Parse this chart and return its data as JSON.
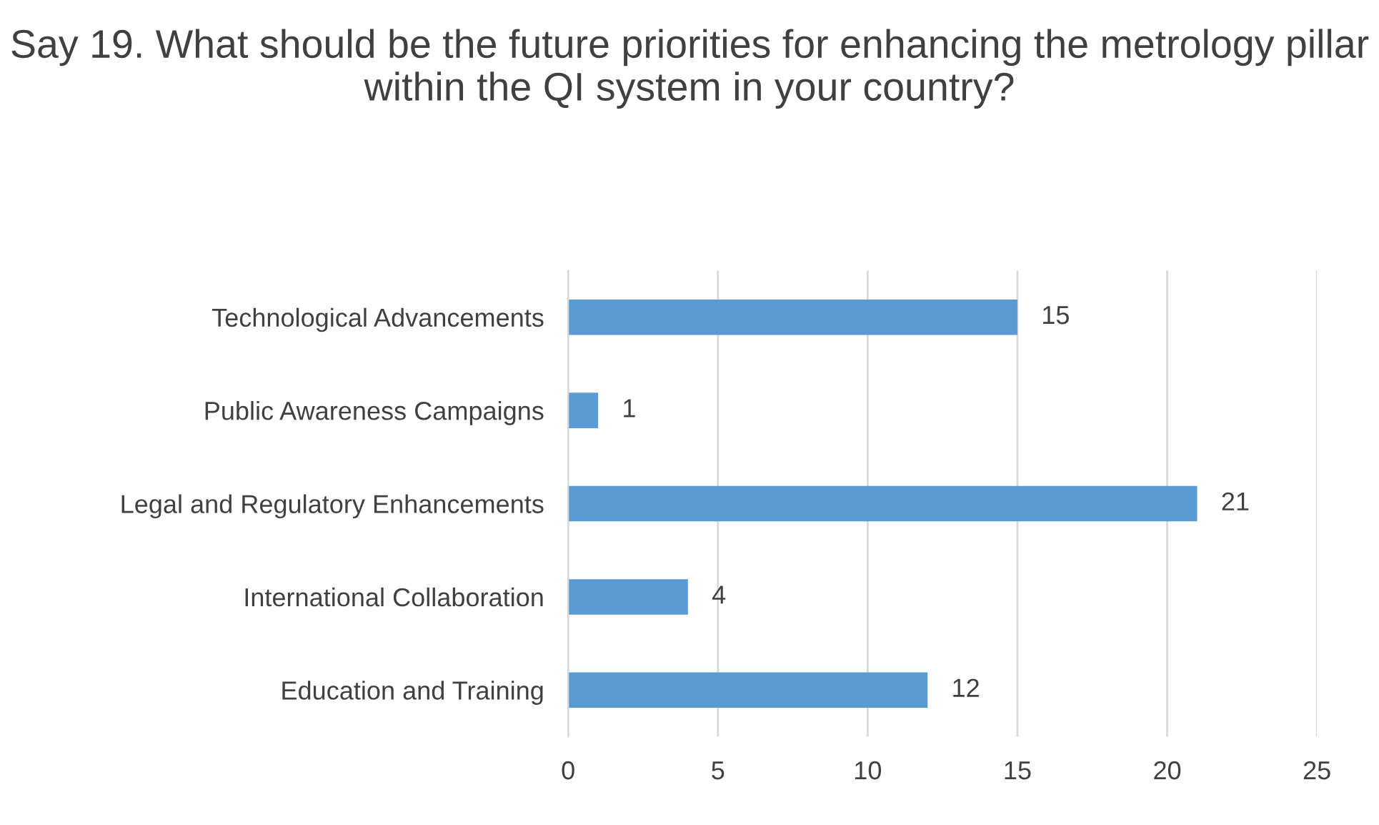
{
  "chart_data": {
    "type": "bar",
    "orientation": "horizontal",
    "title": "Say 19. What should be the future priorities for enhancing the metrology pillar within the QI system in your country?",
    "categories": [
      "Technological Advancements",
      "Public Awareness Campaigns",
      "Legal and Regulatory Enhancements",
      "International Collaboration",
      "Education and Training"
    ],
    "values": [
      15,
      1,
      21,
      4,
      12
    ],
    "color": "#5b9bd5",
    "xlim": [
      0,
      25
    ],
    "xticks": [
      0,
      5,
      10,
      15,
      20,
      25
    ],
    "grid": "x",
    "data_labels": true
  }
}
